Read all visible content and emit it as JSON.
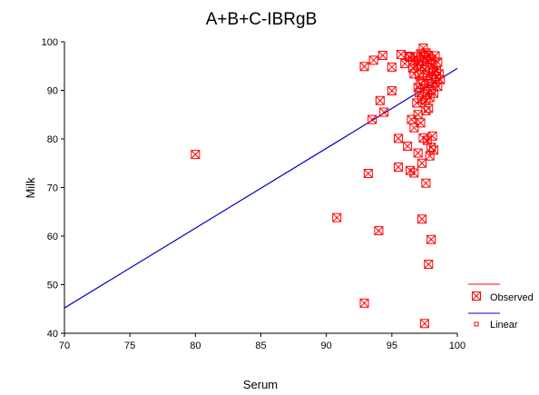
{
  "chart_data": {
    "type": "scatter",
    "title": "A+B+C-IBRgB",
    "xlabel": "Serum",
    "ylabel": "Milk",
    "xlim": [
      70,
      100
    ],
    "ylim": [
      40,
      100
    ],
    "x_ticks": [
      "70",
      "75",
      "80",
      "85",
      "90",
      "95",
      "100"
    ],
    "y_ticks": [
      "40",
      "50",
      "60",
      "70",
      "80",
      "90",
      "100"
    ],
    "grid": false,
    "legend_position": "bottom-right",
    "series": [
      {
        "name": "Observed",
        "type": "scatter",
        "color": "#ff0000",
        "marker": "boxed-x",
        "points": [
          [
            80.0,
            76.8
          ],
          [
            90.8,
            63.8
          ],
          [
            92.9,
            94.9
          ],
          [
            92.9,
            46.2
          ],
          [
            93.2,
            72.9
          ],
          [
            93.5,
            84.0
          ],
          [
            93.6,
            96.2
          ],
          [
            94.0,
            61.1
          ],
          [
            94.1,
            87.9
          ],
          [
            94.3,
            97.2
          ],
          [
            94.4,
            85.5
          ],
          [
            95.0,
            89.9
          ],
          [
            95.0,
            94.8
          ],
          [
            95.5,
            80.1
          ],
          [
            95.5,
            74.2
          ],
          [
            95.7,
            97.4
          ],
          [
            96.0,
            95.5
          ],
          [
            96.2,
            78.5
          ],
          [
            96.3,
            97.0
          ],
          [
            96.4,
            96.8
          ],
          [
            96.4,
            73.5
          ],
          [
            96.5,
            84.0
          ],
          [
            96.6,
            96.0
          ],
          [
            96.6,
            94.6
          ],
          [
            96.7,
            93.4
          ],
          [
            96.7,
            82.3
          ],
          [
            96.7,
            73.0
          ],
          [
            96.8,
            96.9
          ],
          [
            96.9,
            87.4
          ],
          [
            97.0,
            95.4
          ],
          [
            97.0,
            90.6
          ],
          [
            97.0,
            85.0
          ],
          [
            97.0,
            77.1
          ],
          [
            97.1,
            96.2
          ],
          [
            97.1,
            93.2
          ],
          [
            97.1,
            89.5
          ],
          [
            97.2,
            97.5
          ],
          [
            97.2,
            91.3
          ],
          [
            97.2,
            83.3
          ],
          [
            97.3,
            95.0
          ],
          [
            97.3,
            88.2
          ],
          [
            97.3,
            75.0
          ],
          [
            97.3,
            63.5
          ],
          [
            97.4,
            98.7
          ],
          [
            97.4,
            92.0
          ],
          [
            97.4,
            80.2
          ],
          [
            97.5,
            96.9
          ],
          [
            97.5,
            94.2
          ],
          [
            97.5,
            90.3
          ],
          [
            97.5,
            42.0
          ],
          [
            97.6,
            97.7
          ],
          [
            97.6,
            87.9
          ],
          [
            97.6,
            85.8
          ],
          [
            97.6,
            70.9
          ],
          [
            97.7,
            95.9
          ],
          [
            97.7,
            93.0
          ],
          [
            97.7,
            89.2
          ],
          [
            97.7,
            79.7
          ],
          [
            97.8,
            97.2
          ],
          [
            97.8,
            91.4
          ],
          [
            97.8,
            86.3
          ],
          [
            97.8,
            54.2
          ],
          [
            97.9,
            94.6
          ],
          [
            97.9,
            88.5
          ],
          [
            97.9,
            76.5
          ],
          [
            98.0,
            96.4
          ],
          [
            98.0,
            92.5
          ],
          [
            98.0,
            90.0
          ],
          [
            98.0,
            78.3
          ],
          [
            98.0,
            59.3
          ],
          [
            98.1,
            95.2
          ],
          [
            98.1,
            80.6
          ],
          [
            98.2,
            93.8
          ],
          [
            98.2,
            89.4
          ],
          [
            98.2,
            77.7
          ],
          [
            98.3,
            97.1
          ],
          [
            98.3,
            91.6
          ],
          [
            98.4,
            94.0
          ],
          [
            98.4,
            92.9
          ],
          [
            98.5,
            95.8
          ],
          [
            98.5,
            90.8
          ],
          [
            98.6,
            93.4
          ],
          [
            98.7,
            92.2
          ]
        ]
      },
      {
        "name": "Linear",
        "type": "line",
        "color": "#0000cc",
        "points": [
          [
            70,
            45.2
          ],
          [
            100,
            94.5
          ]
        ]
      }
    ]
  }
}
